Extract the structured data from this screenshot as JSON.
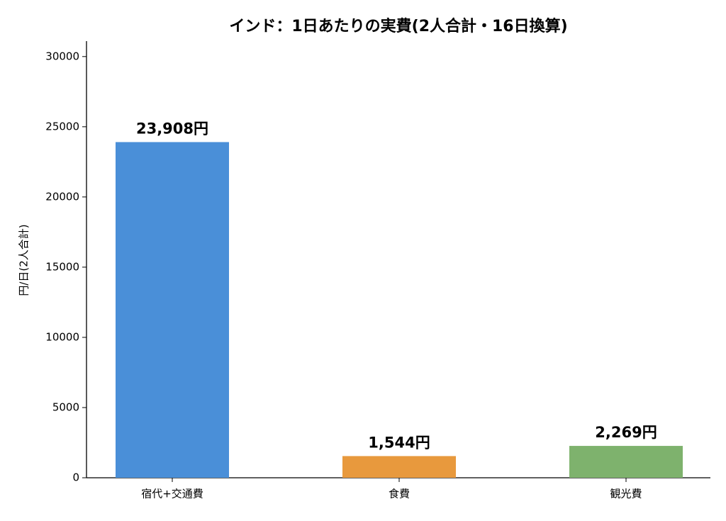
{
  "chart_data": {
    "type": "bar",
    "title": "インド：1日あたりの実費(2人合計・16日換算)",
    "y_label": "円/日(2人合計)",
    "categories": [
      "宿代+交通費",
      "食費",
      "観光費"
    ],
    "values": [
      23908,
      1544,
      2269
    ],
    "value_labels": [
      "23,908円",
      "1,544円",
      "2,269円"
    ],
    "colors": [
      "#4a8fd8",
      "#e8993d",
      "#7eb26d"
    ],
    "ylim": [
      0,
      31100
    ],
    "yticks": [
      0,
      5000,
      10000,
      15000,
      20000,
      25000,
      30000
    ],
    "grid": false
  }
}
